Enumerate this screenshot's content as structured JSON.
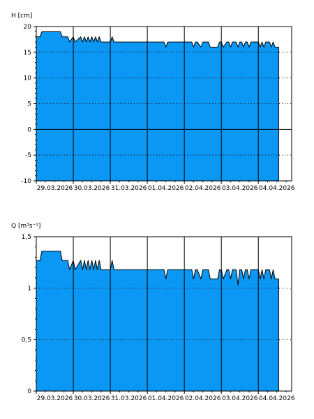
{
  "colors": {
    "fill": "#0b97f4",
    "axis": "#000000",
    "background": "#ffffff"
  },
  "chart_data": [
    {
      "type": "area",
      "ylabel": "H [cm]",
      "ylim": [
        -10,
        20
      ],
      "yticks": [
        -10,
        -5,
        0,
        5,
        10,
        15,
        20
      ],
      "ytick_labels": [
        "-10",
        "-5",
        "0",
        "5",
        "10",
        "15",
        "20"
      ],
      "grid": true,
      "x_range": [
        0,
        6.9
      ],
      "x_tick_labels": [
        "29.03.2026",
        "30.03.2026",
        "31.03.2026",
        "01.04.2026",
        "02.04.2026",
        "03.04.2026",
        "04.04.2026"
      ],
      "x_unit": "days since 28.03.2026 24:00",
      "series": [
        {
          "x": [
            0,
            0.1,
            0.15,
            0.65,
            0.7,
            0.85,
            0.9,
            1.0,
            1.05,
            1.2,
            1.25,
            1.3,
            1.35,
            1.4,
            1.45,
            1.5,
            1.55,
            1.6,
            1.65,
            1.7,
            1.75,
            1.8,
            1.9,
            2.0,
            2.05,
            2.1,
            2.15,
            3.45,
            3.5,
            3.55,
            3.6,
            4.2,
            4.25,
            4.3,
            4.35,
            4.45,
            4.5,
            4.65,
            4.7,
            4.9,
            4.95,
            5.0,
            5.05,
            5.15,
            5.2,
            5.25,
            5.3,
            5.35,
            5.4,
            5.45,
            5.5,
            5.55,
            5.6,
            5.65,
            5.7,
            5.75,
            5.8,
            5.85,
            6.0,
            6.05,
            6.1,
            6.15,
            6.2,
            6.25,
            6.3,
            6.35,
            6.4,
            6.45,
            6.55
          ],
          "values": [
            18,
            18,
            19,
            19,
            18,
            18,
            17,
            18,
            17,
            18,
            17,
            18,
            17,
            18,
            17,
            18,
            17,
            18,
            17,
            18,
            17,
            17,
            17,
            17,
            18,
            17,
            17,
            17,
            16,
            17,
            17,
            17,
            16,
            17,
            17,
            16,
            17,
            17,
            16,
            16,
            17,
            17,
            16,
            17,
            17,
            16,
            17,
            17,
            17,
            16,
            17,
            17,
            16,
            17,
            17,
            16,
            17,
            17,
            17,
            16,
            17,
            16,
            17,
            17,
            17,
            16,
            17,
            16,
            16
          ]
        }
      ]
    },
    {
      "type": "area",
      "ylabel": "Q [m³s⁻¹]",
      "ylim": [
        0,
        1.5
      ],
      "yticks": [
        0,
        0.5,
        1,
        1.5
      ],
      "ytick_labels": [
        "0",
        "0,5",
        "1",
        "1,5"
      ],
      "grid": true,
      "x_range": [
        0,
        6.9
      ],
      "x_tick_labels": [
        "29.03.2026",
        "30.03.2026",
        "31.03.2026",
        "01.04.2026",
        "02.04.2026",
        "03.04.2026",
        "04.04.2026"
      ],
      "x_unit": "days since 28.03.2026 24:00",
      "series": [
        {
          "x": [
            0,
            0.1,
            0.15,
            0.65,
            0.7,
            0.85,
            0.9,
            1.0,
            1.05,
            1.2,
            1.25,
            1.3,
            1.35,
            1.4,
            1.45,
            1.5,
            1.55,
            1.6,
            1.65,
            1.7,
            1.75,
            1.8,
            1.9,
            2.0,
            2.05,
            2.1,
            2.15,
            3.45,
            3.5,
            3.55,
            3.6,
            4.2,
            4.25,
            4.3,
            4.35,
            4.45,
            4.5,
            4.65,
            4.7,
            4.9,
            4.95,
            5.0,
            5.05,
            5.15,
            5.2,
            5.25,
            5.3,
            5.35,
            5.4,
            5.45,
            5.5,
            5.55,
            5.6,
            5.65,
            5.7,
            5.75,
            5.8,
            5.85,
            6.0,
            6.05,
            6.1,
            6.15,
            6.2,
            6.25,
            6.3,
            6.35,
            6.4,
            6.45,
            6.55
          ],
          "values": [
            1.27,
            1.27,
            1.36,
            1.36,
            1.27,
            1.27,
            1.18,
            1.27,
            1.18,
            1.27,
            1.18,
            1.27,
            1.18,
            1.27,
            1.18,
            1.27,
            1.18,
            1.27,
            1.18,
            1.27,
            1.18,
            1.18,
            1.18,
            1.18,
            1.27,
            1.18,
            1.18,
            1.18,
            1.09,
            1.18,
            1.18,
            1.18,
            1.09,
            1.18,
            1.18,
            1.09,
            1.18,
            1.18,
            1.09,
            1.09,
            1.18,
            1.18,
            1.09,
            1.18,
            1.18,
            1.09,
            1.18,
            1.18,
            1.18,
            1.03,
            1.18,
            1.18,
            1.09,
            1.18,
            1.18,
            1.09,
            1.18,
            1.18,
            1.18,
            1.09,
            1.18,
            1.09,
            1.18,
            1.18,
            1.18,
            1.09,
            1.18,
            1.09,
            1.09
          ]
        }
      ]
    }
  ]
}
